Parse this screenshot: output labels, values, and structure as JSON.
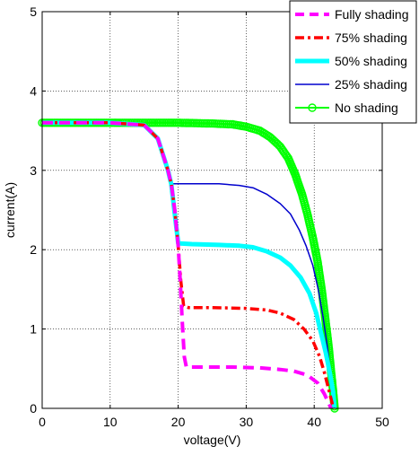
{
  "chart_data": {
    "type": "line",
    "title": "",
    "xlabel": "voltage(V)",
    "ylabel": "current(A)",
    "xlim": [
      0,
      50
    ],
    "ylim": [
      0,
      5
    ],
    "xticks": [
      "0",
      "10",
      "20",
      "30",
      "40",
      "50"
    ],
    "yticks": [
      "0",
      "1",
      "2",
      "3",
      "4",
      "5"
    ],
    "grid": true,
    "legend_position": "top-right",
    "series": [
      {
        "name": "Fully shading",
        "color": "#ff00ff",
        "style": "dashed",
        "points": [
          [
            0,
            3.6
          ],
          [
            10,
            3.6
          ],
          [
            15,
            3.57
          ],
          [
            17,
            3.4
          ],
          [
            18.5,
            3.0
          ],
          [
            19,
            2.82
          ],
          [
            19.5,
            2.5
          ],
          [
            20,
            2.05
          ],
          [
            20.3,
            1.6
          ],
          [
            20.6,
            1.1
          ],
          [
            20.9,
            0.65
          ],
          [
            21.2,
            0.52
          ],
          [
            24,
            0.52
          ],
          [
            28,
            0.52
          ],
          [
            32,
            0.51
          ],
          [
            35,
            0.49
          ],
          [
            37,
            0.47
          ],
          [
            39,
            0.42
          ],
          [
            40.5,
            0.32
          ],
          [
            41.5,
            0.18
          ],
          [
            42.2,
            0.05
          ],
          [
            42.5,
            0
          ]
        ]
      },
      {
        "name": "75% shading",
        "color": "#ff0000",
        "style": "dashdot",
        "points": [
          [
            0,
            3.6
          ],
          [
            10,
            3.6
          ],
          [
            15,
            3.57
          ],
          [
            17,
            3.4
          ],
          [
            18.5,
            3.0
          ],
          [
            19,
            2.82
          ],
          [
            19.5,
            2.5
          ],
          [
            20,
            2.05
          ],
          [
            20.4,
            1.6
          ],
          [
            20.8,
            1.29
          ],
          [
            21.5,
            1.27
          ],
          [
            25,
            1.27
          ],
          [
            30,
            1.26
          ],
          [
            33,
            1.24
          ],
          [
            35,
            1.2
          ],
          [
            37,
            1.12
          ],
          [
            38.5,
            1.0
          ],
          [
            39.8,
            0.85
          ],
          [
            40.8,
            0.65
          ],
          [
            41.5,
            0.45
          ],
          [
            42.1,
            0.25
          ],
          [
            42.6,
            0.08
          ],
          [
            42.8,
            0
          ]
        ]
      },
      {
        "name": "50% shading",
        "color": "#00ffff",
        "style": "solid-thick",
        "points": [
          [
            0,
            3.6
          ],
          [
            10,
            3.6
          ],
          [
            15,
            3.57
          ],
          [
            17,
            3.4
          ],
          [
            18.5,
            3.0
          ],
          [
            19,
            2.82
          ],
          [
            19.5,
            2.45
          ],
          [
            20,
            2.08
          ],
          [
            22,
            2.07
          ],
          [
            26,
            2.06
          ],
          [
            29,
            2.05
          ],
          [
            31,
            2.03
          ],
          [
            33,
            1.98
          ],
          [
            35,
            1.9
          ],
          [
            36.5,
            1.8
          ],
          [
            38,
            1.65
          ],
          [
            39.3,
            1.45
          ],
          [
            40.3,
            1.2
          ],
          [
            41,
            0.95
          ],
          [
            41.7,
            0.7
          ],
          [
            42.3,
            0.45
          ],
          [
            42.8,
            0.2
          ],
          [
            43,
            0
          ]
        ]
      },
      {
        "name": "25% shading",
        "color": "#0000cd",
        "style": "solid",
        "points": [
          [
            0,
            3.6
          ],
          [
            10,
            3.6
          ],
          [
            14.5,
            3.58
          ],
          [
            15.5,
            3.55
          ],
          [
            16.5,
            3.45
          ],
          [
            17.5,
            3.3
          ],
          [
            18.2,
            3.1
          ],
          [
            18.6,
            2.95
          ],
          [
            19,
            2.83
          ],
          [
            22,
            2.83
          ],
          [
            26,
            2.83
          ],
          [
            29,
            2.81
          ],
          [
            31,
            2.78
          ],
          [
            33,
            2.7
          ],
          [
            35,
            2.58
          ],
          [
            36.5,
            2.45
          ],
          [
            37.8,
            2.25
          ],
          [
            38.8,
            2.05
          ],
          [
            39.8,
            1.8
          ],
          [
            40.6,
            1.5
          ],
          [
            41.3,
            1.15
          ],
          [
            41.9,
            0.8
          ],
          [
            42.4,
            0.45
          ],
          [
            42.8,
            0.15
          ],
          [
            43,
            0
          ]
        ]
      },
      {
        "name": "No shading",
        "color": "#00ff00",
        "style": "markers",
        "points": [
          [
            0,
            3.6
          ],
          [
            5,
            3.6
          ],
          [
            10,
            3.6
          ],
          [
            15,
            3.6
          ],
          [
            20,
            3.6
          ],
          [
            25,
            3.59
          ],
          [
            28,
            3.58
          ],
          [
            30,
            3.55
          ],
          [
            32,
            3.5
          ],
          [
            33.5,
            3.42
          ],
          [
            35,
            3.3
          ],
          [
            36.2,
            3.15
          ],
          [
            37.2,
            2.95
          ],
          [
            38.2,
            2.7
          ],
          [
            39,
            2.45
          ],
          [
            39.8,
            2.15
          ],
          [
            40.5,
            1.85
          ],
          [
            41.1,
            1.5
          ],
          [
            41.6,
            1.15
          ],
          [
            42.1,
            0.8
          ],
          [
            42.5,
            0.45
          ],
          [
            42.8,
            0.2
          ],
          [
            43,
            0
          ]
        ]
      }
    ]
  }
}
